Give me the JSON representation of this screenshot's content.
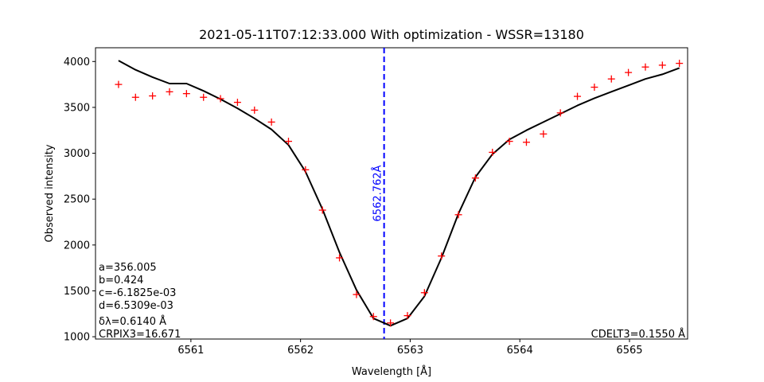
{
  "chart_data": {
    "type": "scatter",
    "title": "2021-05-11T07:12:33.000 With optimization - WSSR=13180",
    "xlabel": "Wavelength [Å]",
    "ylabel": "Observed intensity",
    "xlim": [
      6560.13,
      6565.53
    ],
    "ylim": [
      975,
      4150
    ],
    "xticks": [
      6561,
      6562,
      6563,
      6564,
      6565
    ],
    "yticks": [
      1000,
      1500,
      2000,
      2500,
      3000,
      3500,
      4000
    ],
    "series": [
      {
        "kind": "markers",
        "marker": "plus",
        "color": "#ff0000",
        "x": [
          6560.34,
          6560.495,
          6560.65,
          6560.805,
          6560.96,
          6561.115,
          6561.27,
          6561.425,
          6561.58,
          6561.735,
          6561.89,
          6562.045,
          6562.2,
          6562.355,
          6562.51,
          6562.665,
          6562.82,
          6562.975,
          6563.13,
          6563.285,
          6563.44,
          6563.595,
          6563.75,
          6563.905,
          6564.06,
          6564.215,
          6564.37,
          6564.525,
          6564.68,
          6564.835,
          6564.99,
          6565.145,
          6565.3,
          6565.455
        ],
        "y": [
          3750,
          3610,
          3625,
          3670,
          3650,
          3610,
          3595,
          3555,
          3470,
          3340,
          3130,
          2820,
          2380,
          1860,
          1460,
          1220,
          1150,
          1230,
          1480,
          1880,
          2330,
          2730,
          3010,
          3130,
          3120,
          3210,
          3440,
          3620,
          3720,
          3810,
          3880,
          3940,
          3960,
          3980
        ]
      },
      {
        "kind": "line",
        "color": "#000000",
        "x": [
          6560.34,
          6560.495,
          6560.65,
          6560.805,
          6560.96,
          6561.115,
          6561.27,
          6561.425,
          6561.58,
          6561.735,
          6561.89,
          6562.045,
          6562.2,
          6562.355,
          6562.51,
          6562.665,
          6562.82,
          6562.975,
          6563.13,
          6563.285,
          6563.44,
          6563.595,
          6563.75,
          6563.905,
          6564.06,
          6564.215,
          6564.37,
          6564.525,
          6564.68,
          6564.835,
          6564.99,
          6565.145,
          6565.3,
          6565.455
        ],
        "y": [
          4010,
          3910,
          3830,
          3760,
          3760,
          3680,
          3590,
          3490,
          3380,
          3260,
          3090,
          2800,
          2390,
          1920,
          1510,
          1200,
          1120,
          1200,
          1440,
          1860,
          2340,
          2740,
          2990,
          3150,
          3250,
          3340,
          3430,
          3520,
          3600,
          3670,
          3740,
          3810,
          3860,
          3930
        ]
      }
    ],
    "vline": {
      "x": 6562.762,
      "color": "#0000ff",
      "style": "dashed",
      "label": "6562.762Å"
    },
    "annotations_left": [
      "a=356.005",
      "b=0.424",
      "c=-6.1825e-03",
      "d=6.5309e-03",
      "δλ=0.6140 Å",
      "CRPIX3=16.671"
    ],
    "annotation_right": "CDELT3=0.1550 Å",
    "grid": false
  }
}
